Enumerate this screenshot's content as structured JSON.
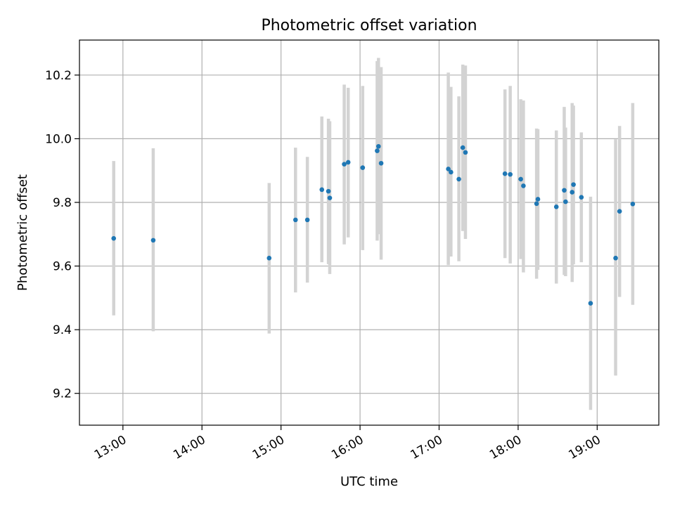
{
  "chart_data": {
    "type": "scatter",
    "title": "Photometric offset variation",
    "xlabel": "UTC time",
    "ylabel": "Photometric offset",
    "x_unit": "hours",
    "xlim": [
      12.45,
      19.78
    ],
    "ylim": [
      9.1,
      10.31
    ],
    "x_ticks": [
      {
        "value": 13,
        "label": "13:00"
      },
      {
        "value": 14,
        "label": "14:00"
      },
      {
        "value": 15,
        "label": "15:00"
      },
      {
        "value": 16,
        "label": "16:00"
      },
      {
        "value": 17,
        "label": "17:00"
      },
      {
        "value": 18,
        "label": "18:00"
      },
      {
        "value": 19,
        "label": "19:00"
      }
    ],
    "y_ticks": [
      {
        "value": 9.2,
        "label": "9.2"
      },
      {
        "value": 9.4,
        "label": "9.4"
      },
      {
        "value": 9.6,
        "label": "9.6"
      },
      {
        "value": 9.8,
        "label": "9.8"
      },
      {
        "value": 10.0,
        "label": "10.0"
      },
      {
        "value": 10.2,
        "label": "10.2"
      }
    ],
    "grid": true,
    "point_color": "#1f77b4",
    "errorbar_color": "#d3d3d3",
    "points": [
      {
        "x": "12:53",
        "y": 9.687,
        "err_low": 9.445,
        "err_high": 9.93
      },
      {
        "x": "13:23",
        "y": 9.681,
        "err_low": 9.395,
        "err_high": 9.97
      },
      {
        "x": "14:51",
        "y": 9.625,
        "err_low": 9.388,
        "err_high": 9.861
      },
      {
        "x": "15:11",
        "y": 9.745,
        "err_low": 9.517,
        "err_high": 9.972
      },
      {
        "x": "15:20",
        "y": 9.745,
        "err_low": 9.548,
        "err_high": 9.943
      },
      {
        "x": "15:31",
        "y": 9.84,
        "err_low": 9.612,
        "err_high": 10.07
      },
      {
        "x": "15:36",
        "y": 9.835,
        "err_low": 9.606,
        "err_high": 10.063
      },
      {
        "x": "15:37",
        "y": 9.814,
        "err_low": 9.575,
        "err_high": 10.055
      },
      {
        "x": "15:48",
        "y": 9.92,
        "err_low": 9.668,
        "err_high": 10.17
      },
      {
        "x": "15:51",
        "y": 9.926,
        "err_low": 9.69,
        "err_high": 10.16
      },
      {
        "x": "16:02",
        "y": 9.909,
        "err_low": 9.65,
        "err_high": 10.166
      },
      {
        "x": "16:13",
        "y": 9.962,
        "err_low": 9.68,
        "err_high": 10.244
      },
      {
        "x": "16:14",
        "y": 9.976,
        "err_low": 9.7,
        "err_high": 10.254
      },
      {
        "x": "16:16",
        "y": 9.923,
        "err_low": 9.62,
        "err_high": 10.225
      },
      {
        "x": "17:07",
        "y": 9.905,
        "err_low": 9.603,
        "err_high": 10.208
      },
      {
        "x": "17:09",
        "y": 9.895,
        "err_low": 9.63,
        "err_high": 10.163
      },
      {
        "x": "17:15",
        "y": 9.873,
        "err_low": 9.615,
        "err_high": 10.133
      },
      {
        "x": "17:18",
        "y": 9.972,
        "err_low": 9.71,
        "err_high": 10.233
      },
      {
        "x": "17:20",
        "y": 9.957,
        "err_low": 9.685,
        "err_high": 10.23
      },
      {
        "x": "17:50",
        "y": 9.89,
        "err_low": 9.625,
        "err_high": 10.155
      },
      {
        "x": "17:54",
        "y": 9.888,
        "err_low": 9.608,
        "err_high": 10.166
      },
      {
        "x": "18:02",
        "y": 9.873,
        "err_low": 9.622,
        "err_high": 10.124
      },
      {
        "x": "18:04",
        "y": 9.852,
        "err_low": 9.58,
        "err_high": 10.12
      },
      {
        "x": "18:14",
        "y": 9.796,
        "err_low": 9.56,
        "err_high": 10.032
      },
      {
        "x": "18:15",
        "y": 9.81,
        "err_low": 9.588,
        "err_high": 10.03
      },
      {
        "x": "18:29",
        "y": 9.786,
        "err_low": 9.545,
        "err_high": 10.026
      },
      {
        "x": "18:35",
        "y": 9.838,
        "err_low": 9.572,
        "err_high": 10.1
      },
      {
        "x": "18:36",
        "y": 9.802,
        "err_low": 9.568,
        "err_high": 10.035
      },
      {
        "x": "18:41",
        "y": 9.832,
        "err_low": 9.55,
        "err_high": 10.112
      },
      {
        "x": "18:42",
        "y": 9.856,
        "err_low": 9.605,
        "err_high": 10.104
      },
      {
        "x": "18:48",
        "y": 9.816,
        "err_low": 9.612,
        "err_high": 10.02
      },
      {
        "x": "18:55",
        "y": 9.483,
        "err_low": 9.148,
        "err_high": 9.818
      },
      {
        "x": "19:14",
        "y": 9.625,
        "err_low": 9.256,
        "err_high": 9.998
      },
      {
        "x": "19:17",
        "y": 9.772,
        "err_low": 9.503,
        "err_high": 10.04
      },
      {
        "x": "19:27",
        "y": 9.795,
        "err_low": 9.478,
        "err_high": 10.112
      }
    ]
  }
}
